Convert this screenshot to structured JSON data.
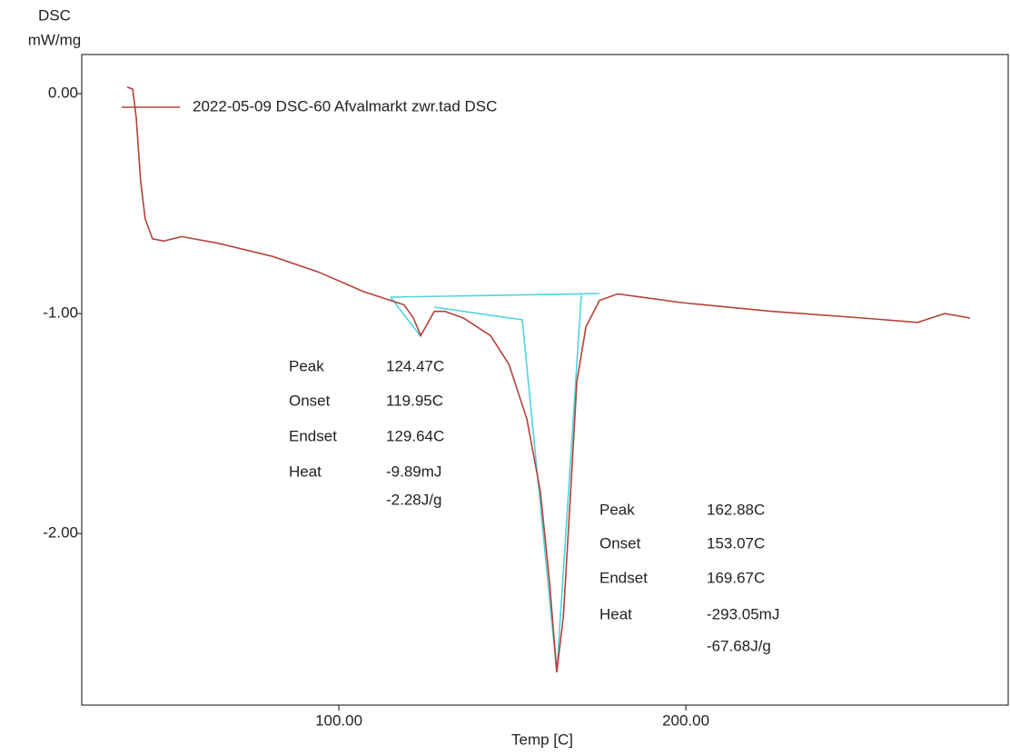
{
  "chart_data": {
    "type": "line",
    "y_label": [
      "DSC",
      "mW/mg"
    ],
    "x_label": "Temp  [C]",
    "xlim": [
      25.9,
      292.9
    ],
    "ylim": [
      -2.78,
      0.178
    ],
    "xticks": [
      {
        "value": 100,
        "label": "100.00"
      },
      {
        "value": 200,
        "label": "200.00"
      }
    ],
    "yticks": [
      {
        "value": 0,
        "label": "0.00"
      },
      {
        "value": -1,
        "label": "-1.00"
      },
      {
        "value": -2,
        "label": "-2.00"
      }
    ],
    "legend": "top-left",
    "series": [
      {
        "name": "2022-05-09 DSC-60 Afvalmarkt zwr.tad  DSC",
        "color": "#b5403a",
        "x": [
          39.0,
          40.6,
          41.6,
          42.9,
          44.2,
          46.3,
          49.5,
          54.7,
          65.2,
          80.9,
          94.0,
          107.1,
          114.9,
          118.8,
          121.5,
          123.6,
          125.4,
          127.5,
          130.6,
          135.9,
          143.7,
          149.0,
          154.2,
          158.1,
          160.7,
          162.8,
          164.7,
          166.8,
          168.6,
          171.2,
          175.1,
          180.4,
          198.7,
          224.9,
          251.0,
          266.8,
          274.6,
          281.9
        ],
        "values": [
          0.03,
          0.02,
          -0.11,
          -0.4,
          -0.57,
          -0.66,
          -0.67,
          -0.65,
          -0.68,
          -0.74,
          -0.81,
          -0.9,
          -0.94,
          -0.96,
          -1.02,
          -1.1,
          -1.05,
          -0.99,
          -0.99,
          -1.02,
          -1.1,
          -1.23,
          -1.48,
          -1.81,
          -2.22,
          -2.63,
          -2.38,
          -1.81,
          -1.31,
          -1.06,
          -0.94,
          -0.91,
          -0.95,
          -0.99,
          -1.02,
          -1.04,
          -1.0,
          -1.02
        ]
      }
    ],
    "annotations": [
      {
        "labels": [
          "Peak",
          "Onset",
          "Endset",
          "Heat"
        ],
        "values": [
          "124.47C",
          "119.95C",
          "129.64C",
          "-9.89mJ",
          "-2.28J/g"
        ]
      },
      {
        "labels": [
          "Peak",
          "Onset",
          "Endset",
          "Heat"
        ],
        "values": [
          "162.88C",
          "153.07C",
          "169.67C",
          "-293.05mJ",
          "-67.68J/g"
        ]
      }
    ]
  }
}
